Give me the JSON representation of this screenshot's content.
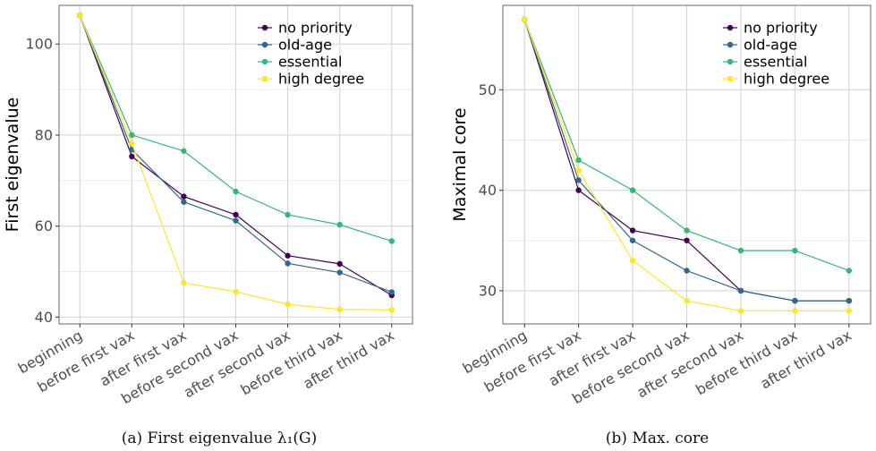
{
  "chart_data": [
    {
      "type": "line",
      "ylabel": "First eigenvalue",
      "xlabel": "",
      "caption": "(a) First eigenvalue λ₁(G)",
      "categories": [
        "beginning",
        "before first vax",
        "after first vax",
        "before second vax",
        "after second vax",
        "before third vax",
        "after third vax"
      ],
      "ylim": [
        38.5,
        108.5
      ],
      "yticks": [
        40,
        60,
        80,
        100
      ],
      "grid": true,
      "legend": "top-right",
      "series": [
        {
          "name": "no priority",
          "color": "#440154",
          "values": [
            106.3,
            75.3,
            66.5,
            62.5,
            53.5,
            51.7,
            44.8
          ]
        },
        {
          "name": "old-age",
          "color": "#31688e",
          "values": [
            106.3,
            76.8,
            65.3,
            61.2,
            51.8,
            49.8,
            45.5
          ]
        },
        {
          "name": "essential",
          "color": "#35b779",
          "values": [
            106.3,
            80.0,
            76.5,
            67.6,
            62.5,
            60.3,
            56.7
          ]
        },
        {
          "name": "high degree",
          "color": "#fde725",
          "values": [
            106.3,
            78.2,
            47.5,
            45.6,
            42.8,
            41.7,
            41.6
          ]
        }
      ]
    },
    {
      "type": "line",
      "ylabel": "Maximal core",
      "xlabel": "",
      "caption": "(b) Max. core",
      "categories": [
        "beginning",
        "before first vax",
        "after first vax",
        "before second vax",
        "after second vax",
        "before third vax",
        "after third vax"
      ],
      "ylim": [
        26.7,
        58.4
      ],
      "yticks": [
        30,
        40,
        50
      ],
      "grid": true,
      "legend": "top-right",
      "series": [
        {
          "name": "no priority",
          "color": "#440154",
          "values": [
            57,
            40,
            36,
            35,
            30,
            29,
            29
          ]
        },
        {
          "name": "old-age",
          "color": "#31688e",
          "values": [
            57,
            41,
            35,
            32,
            30,
            29,
            29
          ]
        },
        {
          "name": "essential",
          "color": "#35b779",
          "values": [
            57,
            43,
            40,
            36,
            34,
            34,
            32
          ]
        },
        {
          "name": "high degree",
          "color": "#fde725",
          "values": [
            57,
            42,
            33,
            29,
            28,
            28,
            28
          ]
        }
      ]
    }
  ]
}
